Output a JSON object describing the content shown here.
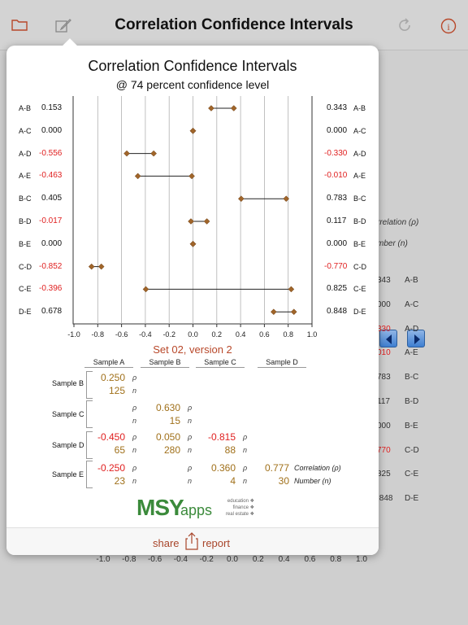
{
  "navbar": {
    "title": "Correlation Confidence Intervals",
    "icons": [
      "folder-icon",
      "edit-icon",
      "refresh-icon",
      "info-icon"
    ]
  },
  "background": {
    "labels": [
      "rrelation (ρ)",
      "mber (n)"
    ],
    "rows": [
      {
        "value": "343",
        "label": "A-B",
        "red": false
      },
      {
        "value": "000",
        "label": "A-C",
        "red": false
      },
      {
        "value": "330",
        "label": "A-D",
        "red": true
      },
      {
        "value": "010",
        "label": "A-E",
        "red": true
      },
      {
        "value": "783",
        "label": "B-C",
        "red": false
      },
      {
        "value": "117",
        "label": "B-D",
        "red": false
      },
      {
        "value": "000",
        "label": "B-E",
        "red": false
      },
      {
        "value": "770",
        "label": "C-D",
        "red": true
      },
      {
        "value": "825",
        "label": "C-E",
        "red": false
      },
      {
        "value": ".848",
        "label": "D-E",
        "red": false
      }
    ],
    "axis_ticks": [
      "-1.0",
      "-0.8",
      "-0.6",
      "-0.4",
      "-0.2",
      "0.0",
      "0.2",
      "0.4",
      "0.6",
      "0.8",
      "1.0"
    ]
  },
  "popover": {
    "title": "Correlation Confidence Intervals",
    "subtitle": "@ 74 percent confidence level",
    "set_title": "Set 02, version 2",
    "columns": [
      "Sample A",
      "Sample B",
      "Sample C",
      "Sample D"
    ],
    "sample_rows": [
      "Sample B",
      "Sample C",
      "Sample D",
      "Sample E"
    ],
    "matrix": [
      {
        "row": "Sample B",
        "cells": [
          {
            "rho": "0.250",
            "n": "125",
            "red": false
          }
        ]
      },
      {
        "row": "Sample C",
        "cells": [
          {
            "rho": "",
            "n": ""
          },
          {
            "rho": "0.630",
            "n": "15",
            "red": false
          }
        ]
      },
      {
        "row": "Sample D",
        "cells": [
          {
            "rho": "-0.450",
            "n": "65",
            "red": true
          },
          {
            "rho": "0.050",
            "n": "280",
            "red": false
          },
          {
            "rho": "-0.815",
            "n": "88",
            "red": true
          }
        ]
      },
      {
        "row": "Sample E",
        "cells": [
          {
            "rho": "-0.250",
            "n": "23",
            "red": true
          },
          {
            "rho": "",
            "n": ""
          },
          {
            "rho": "0.360",
            "n": "4",
            "red": false
          },
          {
            "rho": "0.777",
            "n": "30",
            "red": false
          }
        ]
      }
    ],
    "rho_symbol": "ρ",
    "n_symbol": "n",
    "legend_rho": "Correlation (ρ)",
    "legend_n": "Number (n)",
    "logo": {
      "main": "MSY",
      "apps": "apps",
      "tags": [
        "education ❖",
        "finance ❖",
        "real estate ❖"
      ]
    },
    "footer": {
      "share": "share",
      "report": "report"
    }
  },
  "chart_data": {
    "type": "scatter",
    "title": "Correlation Confidence Intervals",
    "subtitle": "@ 74 percent confidence level",
    "xlim": [
      -1.0,
      1.0
    ],
    "x_ticks": [
      "-1.0",
      "-0.8",
      "-0.6",
      "-0.4",
      "-0.2",
      "0.0",
      "0.2",
      "0.4",
      "0.6",
      "0.8",
      "1.0"
    ],
    "grid": true,
    "series": [
      {
        "pair": "A-B",
        "lower": 0.153,
        "upper": 0.343,
        "lower_label": "0.153",
        "upper_label": "0.343"
      },
      {
        "pair": "A-C",
        "lower": 0.0,
        "upper": 0.0,
        "lower_label": "0.000",
        "upper_label": "0.000"
      },
      {
        "pair": "A-D",
        "lower": -0.556,
        "upper": -0.33,
        "lower_label": "-0.556",
        "upper_label": "-0.330"
      },
      {
        "pair": "A-E",
        "lower": -0.463,
        "upper": -0.01,
        "lower_label": "-0.463",
        "upper_label": "-0.010"
      },
      {
        "pair": "B-C",
        "lower": 0.405,
        "upper": 0.783,
        "lower_label": "0.405",
        "upper_label": "0.783"
      },
      {
        "pair": "B-D",
        "lower": -0.017,
        "upper": 0.117,
        "lower_label": "-0.017",
        "upper_label": "0.117"
      },
      {
        "pair": "B-E",
        "lower": 0.0,
        "upper": 0.0,
        "lower_label": "0.000",
        "upper_label": "0.000"
      },
      {
        "pair": "C-D",
        "lower": -0.852,
        "upper": -0.77,
        "lower_label": "-0.852",
        "upper_label": "-0.770"
      },
      {
        "pair": "C-E",
        "lower": -0.396,
        "upper": 0.825,
        "lower_label": "-0.396",
        "upper_label": "0.825"
      },
      {
        "pair": "D-E",
        "lower": 0.678,
        "upper": 0.848,
        "lower_label": "0.678",
        "upper_label": "0.848"
      }
    ],
    "colors": {
      "marker": "#a0652a",
      "negative_text": "#e02020",
      "grid": "#b0b0b0"
    }
  }
}
